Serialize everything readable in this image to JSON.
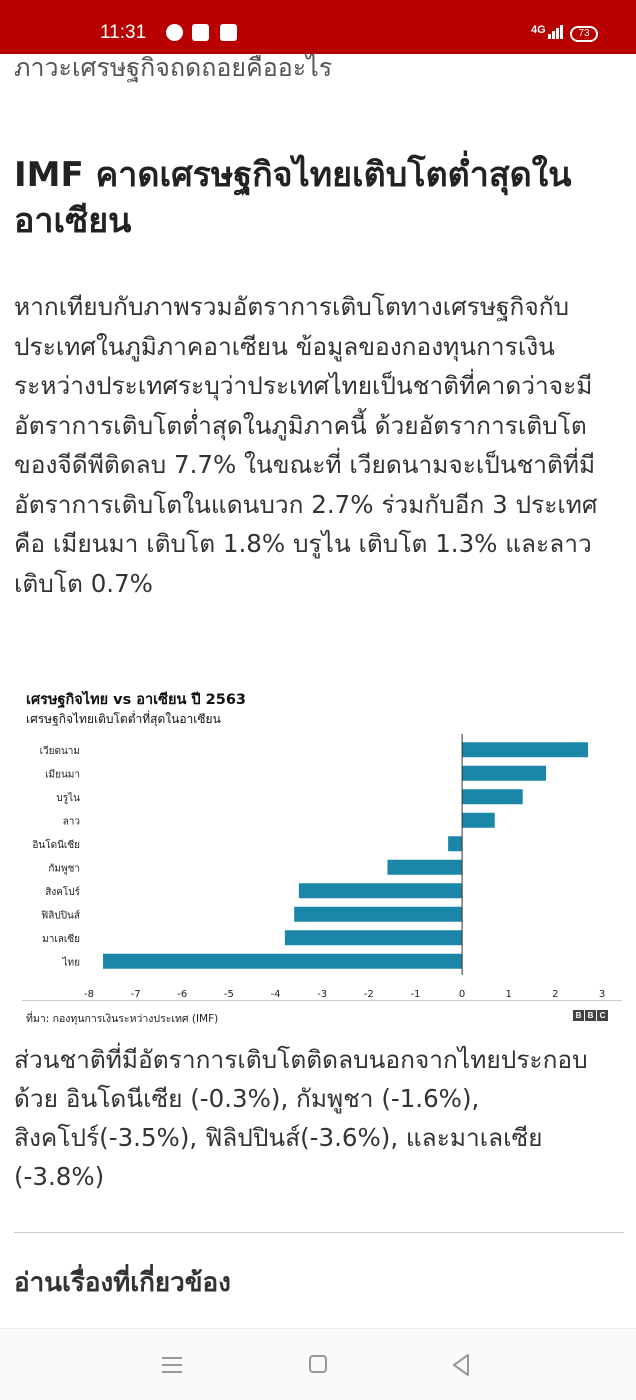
{
  "status_bar": {
    "time": "11:31",
    "network": "4G",
    "battery": "73",
    "notification_icons": [
      "messenger-icon",
      "app-notification-icon",
      "seven-eleven-icon"
    ]
  },
  "article": {
    "cut_previous_line": "ภาวะเศรษฐกิจถดถอยคืออะไร",
    "headline": "IMF คาดเศรษฐกิจไทยเติบโตต่ำสุดในอาเซียน",
    "paragraph_1": "หากเทียบกับภาพรวมอัตราการเติบโตทางเศรษฐกิจกับประเทศในภูมิภาคอาเซียน ข้อมูลของกองทุนการเงินระหว่างประเทศระบุว่าประเทศไทยเป็นชาติที่คาดว่าจะมีอัตราการเติบโตต่ำสุดในภูมิภาคนี้ ด้วยอัตราการเติบโตของจีดีพีติดลบ 7.7% ในขณะที่ เวียดนามจะเป็นชาติที่มีอัตราการเติบโตในแดนบวก 2.7% ร่วมกับอีก 3 ประเทศคือ เมียนมา เติบโต 1.8% บรูไน เติบโต 1.3% และลาวเติบโต 0.7%",
    "paragraph_2": "ส่วนชาติที่มีอัตราการเติบโตติดลบนอกจากไทยประกอบด้วย อินโดนีเซีย (-0.3%), กัมพูชา (-1.6%), สิงคโปร์(-3.5%), ฟิลิปปินส์(-3.6%), และมาเลเซีย (-3.8%)",
    "related_heading": "อ่านเรื่องที่เกี่ยวข้อง"
  },
  "chart_data": {
    "type": "bar",
    "orientation": "horizontal",
    "title": "เศรษฐกิจไทย vs อาเซียน ปี 2563",
    "subtitle": "เศรษฐกิจไทยเติบโตต่ำที่สุดในอาเซียน",
    "categories": [
      "เวียดนาม",
      "เมียนมา",
      "บรูไน",
      "ลาว",
      "อินโดนีเซีย",
      "กัมพูชา",
      "สิงคโปร์",
      "ฟิลิปปินส์",
      "มาเลเซีย",
      "ไทย"
    ],
    "values": [
      2.7,
      1.8,
      1.3,
      0.7,
      -0.3,
      -1.6,
      -3.5,
      -3.6,
      -3.8,
      -7.7
    ],
    "xlim": [
      -8,
      3
    ],
    "x_ticks": [
      -8,
      -7,
      -6,
      -5,
      -4,
      -3,
      -2,
      -1,
      0,
      1,
      2,
      3
    ],
    "bar_color": "#1a86a8",
    "source": "ที่มา: กองทุนการเงินระหว่างประเทศ (IMF)",
    "logo": [
      "B",
      "B",
      "C"
    ]
  },
  "colors": {
    "status_bar": "#b80000",
    "bar": "#1a86a8"
  }
}
